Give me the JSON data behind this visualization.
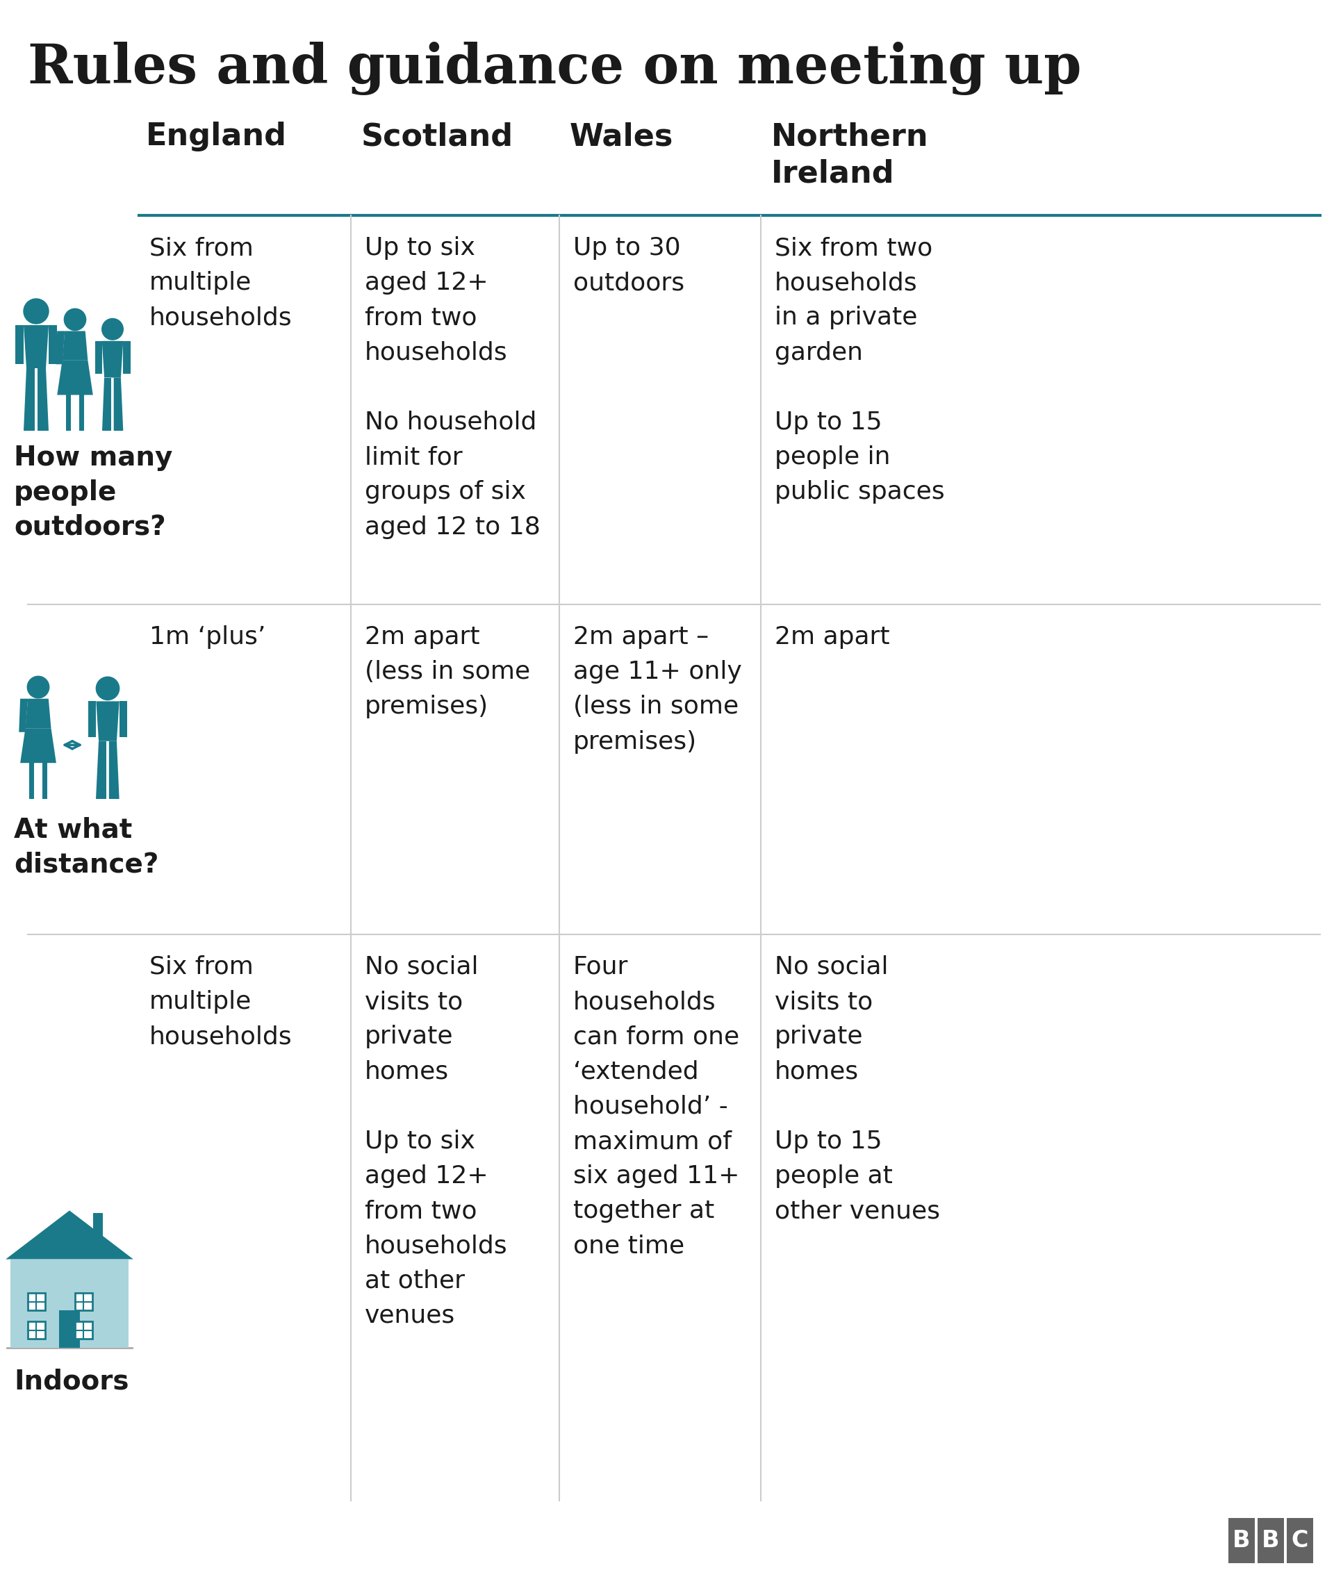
{
  "title": "Rules and guidance on meeting up",
  "bg": "#ffffff",
  "dark": "#1a1a1a",
  "teal": "#1a7a8a",
  "light_teal": "#7cc4ce",
  "lighter_teal": "#aad4db",
  "sep": "#cccccc",
  "bbc_gray": "#636363",
  "headers": [
    "England",
    "Scotland",
    "Wales",
    "Northern\nIreland"
  ],
  "row_labels": [
    "How many\npeople\noutdoors?",
    "At what\ndistance?",
    "Indoors"
  ],
  "cells": [
    [
      "Six from\nmultiple\nhouseholds",
      "Up to six\naged 12+\nfrom two\nhouseholds\n\nNo household\nlimit for\ngroups of six\naged 12 to 18",
      "Up to 30\noutdoors",
      "Six from two\nhouseholds\nin a private\ngarden\n\nUp to 15\npeople in\npublic spaces"
    ],
    [
      "1m ‘plus’",
      "2m apart\n(less in some\npremises)",
      "2m apart –\nage 11+ only\n(less in some\npremises)",
      "2m apart"
    ],
    [
      "Six from\nmultiple\nhouseholds",
      "No social\nvisits to\nprivate\nhomes\n\nUp to six\naged 12+\nfrom two\nhouseholds\nat other\nvenues",
      "Four\nhouseholds\ncan form one\n‘extended\nhousehold’ -\nmaximum of\nsix aged 11+\ntogether at\none time",
      "No social\nvisits to\nprivate\nhomes\n\nUp to 15\npeople at\nother venues"
    ]
  ],
  "title_fs": 56,
  "header_fs": 32,
  "cell_fs": 26,
  "label_fs": 28
}
